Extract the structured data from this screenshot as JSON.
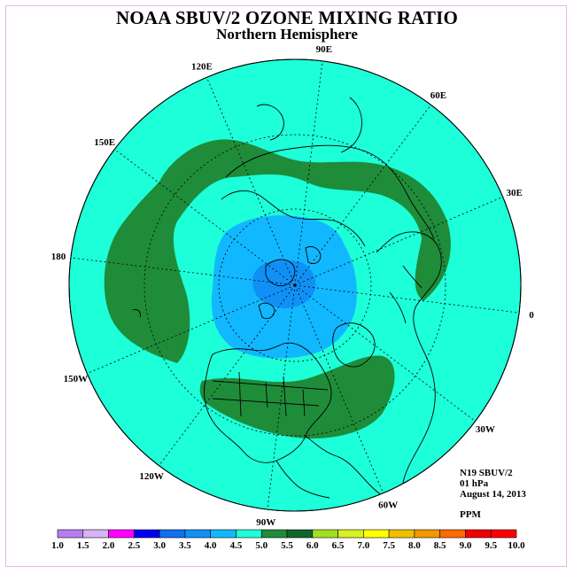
{
  "header": {
    "title": "NOAA SBUV/2 OZONE MIXING RATIO",
    "subtitle": "Northern Hemisphere"
  },
  "map": {
    "projection": "north polar stereographic",
    "background_color": "#1cffd8",
    "longitude_labels": [
      {
        "text": "90E",
        "lon": 90
      },
      {
        "text": "60E",
        "lon": 60
      },
      {
        "text": "30E",
        "lon": 30
      },
      {
        "text": "0",
        "lon": 0
      },
      {
        "text": "30W",
        "lon": -30
      },
      {
        "text": "60W",
        "lon": -60
      },
      {
        "text": "90W",
        "lon": -90
      },
      {
        "text": "120W",
        "lon": -120
      },
      {
        "text": "150W",
        "lon": -150
      },
      {
        "text": "180",
        "lon": 180
      },
      {
        "text": "150E",
        "lon": 150
      },
      {
        "text": "120E",
        "lon": 120
      }
    ],
    "latitude_circles": [
      0,
      30,
      60
    ],
    "contour_regions": [
      {
        "range": "5.0-5.5",
        "color": "#1f8c3a",
        "description": "ozone maximum band encircling mid-latitudes"
      },
      {
        "range": "4.5-5.0",
        "color": "#0ec4ff",
        "description": "lower values around pole"
      },
      {
        "range": "4.0-4.5",
        "color": "#13a0f0",
        "description": "minimum near pole"
      }
    ]
  },
  "info": {
    "satellite": "N19 SBUV/2",
    "level": "01 hPa",
    "date": "August 14, 2013",
    "units": "PPM"
  },
  "colorbar": {
    "ticks": [
      "1.0",
      "1.5",
      "2.0",
      "2.5",
      "3.0",
      "3.5",
      "4.0",
      "4.5",
      "5.0",
      "5.5",
      "6.0",
      "6.5",
      "7.0",
      "7.5",
      "8.0",
      "8.5",
      "9.0",
      "9.5",
      "10.0"
    ],
    "colors": [
      "#b87ef0",
      "#d8b4f4",
      "#ff00ff",
      "#0000f0",
      "#1070f0",
      "#1090f5",
      "#12b8ff",
      "#1cffd8",
      "#1f8c3a",
      "#0f6628",
      "#a0e020",
      "#d8f020",
      "#ffff00",
      "#f0c000",
      "#f09a00",
      "#ff6a00",
      "#f00000",
      "#ff0000",
      "#8c5a3c"
    ]
  }
}
